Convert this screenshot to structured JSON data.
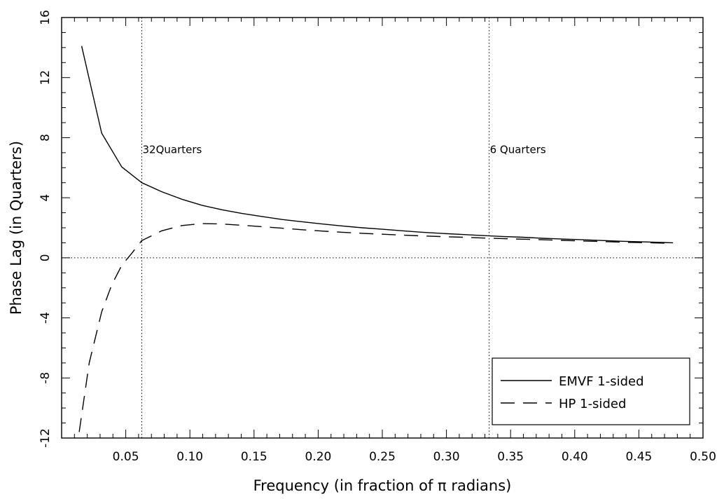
{
  "chart_data": {
    "type": "line",
    "xlabel": "Frequency (in fraction of π radians)",
    "ylabel": "Phase Lag (in Quarters)",
    "xlim": [
      0,
      0.5
    ],
    "ylim": [
      -12,
      16
    ],
    "xticks": [
      0.05,
      0.1,
      0.15,
      0.2,
      0.25,
      0.3,
      0.35,
      0.4,
      0.45,
      0.5
    ],
    "xtick_labels": [
      "0.05",
      "0.10",
      "0.15",
      "0.20",
      "0.25",
      "0.30",
      "0.35",
      "0.40",
      "0.45",
      "0.50"
    ],
    "yticks": [
      -12,
      -8,
      -4,
      0,
      4,
      8,
      12,
      16
    ],
    "ytick_labels": [
      "-12",
      "-8",
      "-4",
      "0",
      "4",
      "8",
      "12",
      "16"
    ],
    "vlines": [
      0.0625,
      0.3333
    ],
    "hlines": [
      0
    ],
    "annotations": [
      {
        "text": "32Quarters",
        "x": 0.0625,
        "y": 7.2
      },
      {
        "text": "6 Quarters",
        "x": 0.3333,
        "y": 7.2
      }
    ],
    "legend_position": "bottom-right",
    "series": [
      {
        "name": "EMVF 1-sided",
        "style": "solid",
        "x": [
          0.0156,
          0.0312,
          0.0469,
          0.0625,
          0.0781,
          0.0938,
          0.1094,
          0.125,
          0.1406,
          0.1562,
          0.1719,
          0.1875,
          0.2031,
          0.2188,
          0.2344,
          0.25,
          0.2656,
          0.2812,
          0.2969,
          0.3125,
          0.3281,
          0.3438,
          0.3594,
          0.375,
          0.3906,
          0.4062,
          0.4219,
          0.4375,
          0.4531,
          0.4688,
          0.4766
        ],
        "values": [
          14.1,
          8.3,
          6.05,
          5.0,
          4.4,
          3.9,
          3.5,
          3.2,
          2.95,
          2.75,
          2.55,
          2.4,
          2.25,
          2.12,
          2.0,
          1.9,
          1.8,
          1.7,
          1.62,
          1.55,
          1.48,
          1.42,
          1.37,
          1.3,
          1.25,
          1.2,
          1.15,
          1.1,
          1.06,
          1.02,
          1.0
        ]
      },
      {
        "name": "HP 1-sided",
        "style": "dashed",
        "x": [
          0.0137,
          0.0215,
          0.0312,
          0.0391,
          0.0469,
          0.0547,
          0.0625,
          0.0781,
          0.0938,
          0.1094,
          0.125,
          0.1406,
          0.1562,
          0.1719,
          0.1875,
          0.2031,
          0.2188,
          0.2344,
          0.25,
          0.2656,
          0.2812,
          0.2969,
          0.3125,
          0.3281,
          0.3438,
          0.3594,
          0.375,
          0.3906,
          0.4062,
          0.4219,
          0.4375,
          0.4531,
          0.4688,
          0.4766
        ],
        "values": [
          -11.6,
          -7.0,
          -3.6,
          -1.8,
          -0.5,
          0.3,
          1.15,
          1.8,
          2.15,
          2.28,
          2.25,
          2.17,
          2.07,
          1.97,
          1.87,
          1.78,
          1.7,
          1.63,
          1.57,
          1.51,
          1.46,
          1.41,
          1.37,
          1.32,
          1.28,
          1.24,
          1.2,
          1.16,
          1.12,
          1.08,
          1.04,
          1.01,
          0.98,
          0.96
        ]
      }
    ]
  }
}
